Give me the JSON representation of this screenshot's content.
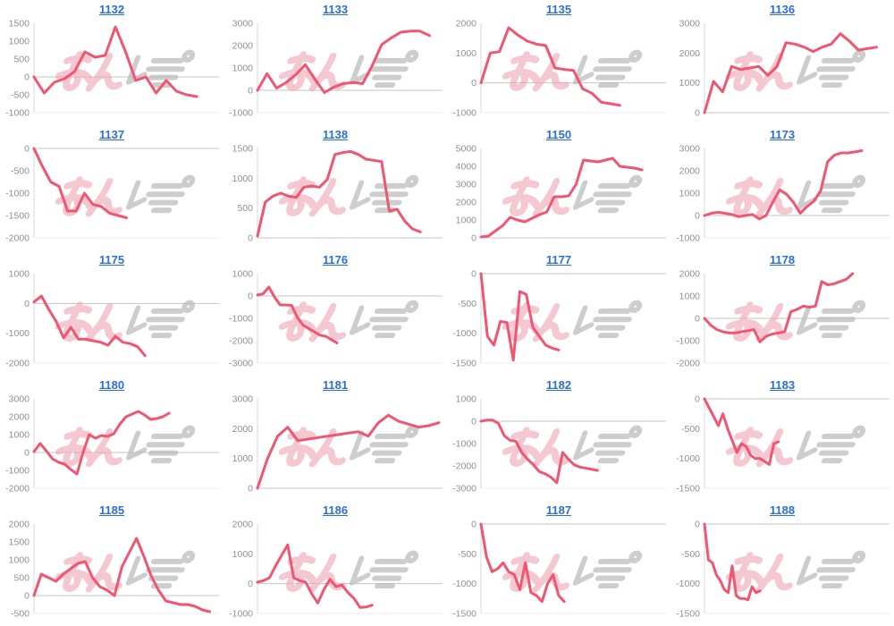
{
  "page": {
    "background": "#ffffff"
  },
  "colors": {
    "line": "#f25570",
    "title_link": "#2a6fdb",
    "tick_label": "#909090",
    "zero_line": "#c6c6c6",
    "axis_line": "#d9d9d9",
    "bottom_line": "#ededed",
    "watermark_pink": "#efa2b2",
    "watermark_gray": "#b8b8b8"
  },
  "watermark": {
    "name": "minrepo-logo",
    "text": "みんレポ"
  },
  "chart_data": [
    {
      "type": "line",
      "title": "1132",
      "ylim": [
        -1000,
        1500
      ],
      "yticks": [
        1500,
        1000,
        500,
        0,
        -500,
        -1000
      ],
      "span": 0.88,
      "values": [
        0,
        -450,
        -150,
        -50,
        150,
        700,
        550,
        600,
        1400,
        700,
        -100,
        0,
        -450,
        -100,
        -400,
        -500,
        -550
      ]
    },
    {
      "type": "line",
      "title": "1133",
      "ylim": [
        -1000,
        3000
      ],
      "yticks": [
        3000,
        2000,
        1000,
        0,
        -1000
      ],
      "span": 0.93,
      "values": [
        0,
        750,
        100,
        350,
        700,
        1150,
        500,
        -100,
        150,
        300,
        350,
        300,
        1100,
        2050,
        2350,
        2600,
        2650,
        2650,
        2450
      ]
    },
    {
      "type": "line",
      "title": "1135",
      "ylim": [
        -1000,
        2000
      ],
      "yticks": [
        2000,
        1000,
        0,
        -1000
      ],
      "span": 0.75,
      "values": [
        0,
        1000,
        1050,
        1850,
        1600,
        1400,
        1300,
        1250,
        500,
        450,
        420,
        -200,
        -350,
        -650,
        -700,
        -750
      ]
    },
    {
      "type": "line",
      "title": "1136",
      "ylim": [
        0,
        3000
      ],
      "yticks": [
        3000,
        2000,
        1000,
        0
      ],
      "span": 0.93,
      "values": [
        0,
        1050,
        700,
        1550,
        1450,
        1500,
        1550,
        1250,
        1550,
        2350,
        2300,
        2200,
        2050,
        2200,
        2300,
        2650,
        2400,
        2100,
        2150,
        2200
      ]
    },
    {
      "type": "line",
      "title": "1137",
      "ylim": [
        -2000,
        0
      ],
      "yticks": [
        0,
        -500,
        -1000,
        -1500,
        -2000
      ],
      "span": 0.5,
      "values": [
        0,
        -400,
        -750,
        -850,
        -1400,
        -1400,
        -1000,
        -1250,
        -1300,
        -1450,
        -1500,
        -1550
      ]
    },
    {
      "type": "line",
      "title": "1138",
      "ylim": [
        0,
        1500
      ],
      "yticks": [
        1500,
        1000,
        500,
        0
      ],
      "span": 0.88,
      "values": [
        30,
        600,
        700,
        750,
        700,
        680,
        850,
        870,
        850,
        980,
        1400,
        1430,
        1450,
        1400,
        1320,
        1300,
        1280,
        450,
        480,
        280,
        150,
        100
      ]
    },
    {
      "type": "line",
      "title": "1150",
      "ylim": [
        0,
        5000
      ],
      "yticks": [
        5000,
        4000,
        3000,
        2000,
        1000,
        0
      ],
      "span": 0.87,
      "values": [
        50,
        100,
        400,
        700,
        1150,
        1000,
        900,
        1100,
        1300,
        1450,
        2300,
        2300,
        2350,
        3000,
        4350,
        4300,
        4250,
        4350,
        4450,
        4000,
        3950,
        3900,
        3800
      ]
    },
    {
      "type": "line",
      "title": "1173",
      "ylim": [
        -1000,
        3000
      ],
      "yticks": [
        3000,
        2000,
        1000,
        0,
        -1000
      ],
      "span": 0.85,
      "values": [
        0,
        100,
        150,
        100,
        50,
        -50,
        0,
        50,
        -150,
        0,
        600,
        1150,
        950,
        600,
        100,
        400,
        650,
        1100,
        2400,
        2700,
        2800,
        2800,
        2850,
        2900
      ]
    },
    {
      "type": "line",
      "title": "1175",
      "ylim": [
        -2000,
        1000
      ],
      "yticks": [
        1000,
        0,
        -1000,
        -2000
      ],
      "span": 0.6,
      "values": [
        50,
        250,
        -200,
        -600,
        -1150,
        -800,
        -1200,
        -1200,
        -1250,
        -1300,
        -1400,
        -1100,
        -1300,
        -1350,
        -1450,
        -1750
      ]
    },
    {
      "type": "line",
      "title": "1176",
      "ylim": [
        -3000,
        1000
      ],
      "yticks": [
        1000,
        0,
        -1000,
        -2000,
        -3000
      ],
      "span": 0.43,
      "values": [
        50,
        100,
        400,
        -50,
        -400,
        -400,
        -420,
        -950,
        -1300,
        -1450,
        -1600,
        -1750,
        -1800,
        -1950,
        -2100
      ]
    },
    {
      "type": "line",
      "title": "1177",
      "ylim": [
        -1500,
        0
      ],
      "yticks": [
        0,
        -500,
        -1000,
        -1500
      ],
      "span": 0.42,
      "values": [
        0,
        -1050,
        -1200,
        -800,
        -820,
        -1450,
        -300,
        -350,
        -900,
        -1050,
        -1200,
        -1250,
        -1280
      ]
    },
    {
      "type": "line",
      "title": "1178",
      "ylim": [
        -2000,
        2000
      ],
      "yticks": [
        2000,
        1000,
        0,
        -1000,
        -2000
      ],
      "span": 0.8,
      "values": [
        0,
        -300,
        -500,
        -600,
        -650,
        -650,
        -600,
        -550,
        -500,
        -1050,
        -800,
        -700,
        -650,
        -600,
        300,
        400,
        550,
        500,
        550,
        1650,
        1500,
        1550,
        1650,
        1750,
        2000
      ]
    },
    {
      "type": "line",
      "title": "1180",
      "ylim": [
        -2000,
        3000
      ],
      "yticks": [
        3000,
        2000,
        1000,
        0,
        -1000,
        -2000
      ],
      "span": 0.73,
      "values": [
        50,
        500,
        100,
        -350,
        -550,
        -650,
        -950,
        -1200,
        0,
        1000,
        800,
        950,
        900,
        1050,
        1600,
        2000,
        2150,
        2300,
        2100,
        1850,
        1900,
        2000,
        2200
      ]
    },
    {
      "type": "line",
      "title": "1181",
      "ylim": [
        0,
        3000
      ],
      "yticks": [
        3000,
        2000,
        1000,
        0
      ],
      "span": 0.98,
      "values": [
        0,
        1000,
        1750,
        2050,
        1600,
        1650,
        1700,
        1750,
        1800,
        1850,
        1900,
        1750,
        2200,
        2450,
        2250,
        2150,
        2050,
        2100,
        2200
      ]
    },
    {
      "type": "line",
      "title": "1182",
      "ylim": [
        -3000,
        1000
      ],
      "yticks": [
        1000,
        0,
        -1000,
        -2000,
        -3000
      ],
      "span": 0.63,
      "values": [
        0,
        50,
        50,
        -100,
        -650,
        -850,
        -900,
        -1400,
        -1700,
        -1950,
        -2250,
        -2350,
        -2500,
        -2750,
        -1400,
        -1700,
        -1950,
        -2050,
        -2100,
        -2150,
        -2200
      ]
    },
    {
      "type": "line",
      "title": "1183",
      "ylim": [
        -1500,
        0
      ],
      "yticks": [
        0,
        -500,
        -1000,
        -1500
      ],
      "span": 0.4,
      "values": [
        0,
        -150,
        -300,
        -450,
        -250,
        -500,
        -700,
        -900,
        -750,
        -800,
        -950,
        -1000,
        -1000,
        -1050,
        -1100,
        -750,
        -720
      ]
    },
    {
      "type": "line",
      "title": "1185",
      "ylim": [
        -500,
        2000
      ],
      "yticks": [
        2000,
        1500,
        1000,
        500,
        0,
        -500
      ],
      "span": 0.95,
      "values": [
        0,
        600,
        500,
        400,
        600,
        750,
        900,
        950,
        500,
        250,
        150,
        0,
        800,
        1200,
        1600,
        1100,
        550,
        150,
        -150,
        -200,
        -250,
        -250,
        -300,
        -400,
        -450
      ]
    },
    {
      "type": "line",
      "title": "1186",
      "ylim": [
        -1000,
        2000
      ],
      "yticks": [
        2000,
        1000,
        0,
        -1000
      ],
      "span": 0.62,
      "values": [
        50,
        100,
        200,
        600,
        950,
        1300,
        200,
        100,
        50,
        -350,
        -650,
        -200,
        150,
        -100,
        -50,
        -300,
        -500,
        -800,
        -780,
        -720
      ]
    },
    {
      "type": "line",
      "title": "1187",
      "ylim": [
        -1500,
        0
      ],
      "yticks": [
        0,
        -500,
        -1000,
        -1500
      ],
      "span": 0.45,
      "values": [
        0,
        -550,
        -800,
        -750,
        -650,
        -800,
        -850,
        -1100,
        -650,
        -1150,
        -1200,
        -1300,
        -1000,
        -850,
        -1200,
        -1300
      ]
    },
    {
      "type": "line",
      "title": "1188",
      "ylim": [
        -1500,
        0
      ],
      "yticks": [
        0,
        -500,
        -1000,
        -1500
      ],
      "span": 0.3,
      "values": [
        0,
        -600,
        -650,
        -850,
        -950,
        -1100,
        -1150,
        -700,
        -1200,
        -1250,
        -1250,
        -1270,
        -1050,
        -1150,
        -1120
      ]
    }
  ]
}
